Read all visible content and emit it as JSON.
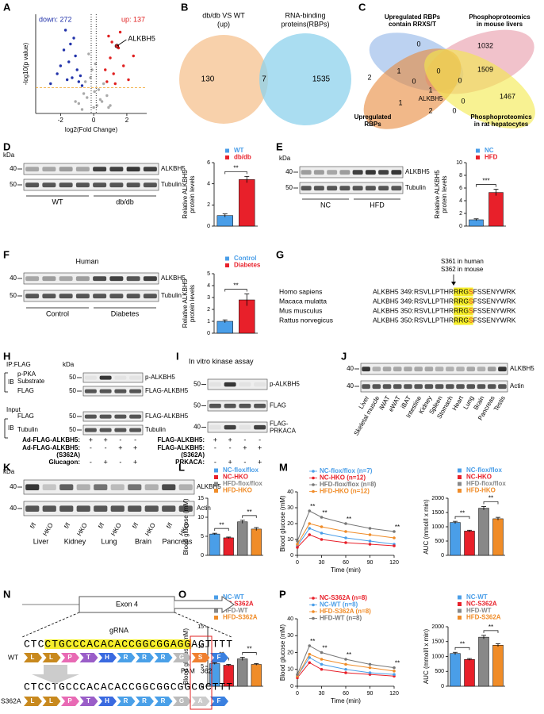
{
  "A": {
    "label": "A",
    "down": "down: 272",
    "up": "up: 137",
    "gene": "ALKBH5",
    "gene_point": {
      "x": 1.4,
      "y": 3.4
    },
    "ylabel": "-log10(p value)",
    "xlabel": "log2(Fold Change)",
    "xlim": [
      -3.5,
      3.2
    ],
    "ylim": [
      0,
      5
    ],
    "xticks": [
      -2,
      0,
      2
    ],
    "threshold": 1.3,
    "vlines": [
      -0.15,
      0.15
    ],
    "series": [
      {
        "color": "#aaaaaa",
        "x": [
          -0.9,
          -0.6,
          -0.4,
          -0.2,
          0,
          0.1,
          0.3,
          0.5,
          0.8,
          -0.3,
          0.2,
          -0.7,
          0.6,
          -0.1,
          0.4,
          -0.5,
          0.9,
          -1.1,
          1.0,
          0.05
        ],
        "y": [
          0.5,
          1.0,
          0.8,
          1.8,
          0.3,
          2.5,
          1.2,
          0.6,
          0.9,
          3.0,
          0.4,
          0.2,
          1.5,
          2.2,
          0.7,
          1.6,
          0.3,
          0.6,
          0.4,
          1.1
        ]
      },
      {
        "color": "#2233aa",
        "x": [
          -2.2,
          -1.8,
          -1.5,
          -1.3,
          -1.2,
          -1.0,
          -0.9,
          -2.6,
          -1.7,
          -1.1,
          -0.8,
          -1.4,
          -2.0,
          -0.7,
          -1.6
        ],
        "y": [
          2.0,
          3.2,
          2.6,
          1.8,
          3.8,
          2.2,
          1.6,
          1.5,
          4.2,
          2.9,
          1.9,
          3.5,
          2.4,
          1.4,
          1.7
        ]
      },
      {
        "color": "#e02020",
        "x": [
          0.8,
          1.0,
          1.2,
          1.5,
          1.8,
          2.1,
          0.9,
          1.3,
          1.6,
          0.7,
          2.4,
          1.1
        ],
        "y": [
          1.6,
          2.8,
          2.0,
          3.3,
          2.4,
          1.7,
          3.9,
          1.5,
          4.1,
          2.2,
          2.9,
          3.6
        ]
      }
    ]
  },
  "B": {
    "label": "B",
    "sets": [
      [
        "db/db VS WT",
        "(up)"
      ],
      [
        "RNA-binding",
        "proteins(RBPs)"
      ]
    ],
    "colors": [
      "#f6c696",
      "#8ed1ec"
    ],
    "counts": [
      130,
      7,
      1535
    ]
  },
  "C": {
    "label": "C",
    "sets": [
      [
        "Upregulated RBPs",
        "contain RRXS/T"
      ],
      [
        "Phosphoproteomics",
        "in mouse livers"
      ],
      [
        "Upregulated",
        "RBPs"
      ],
      [
        "Phosphoproteomics",
        "in rat hepatocytes"
      ]
    ],
    "colors": [
      "#8fb4e8",
      "#e89aa8",
      "#e8883a",
      "#f3e94a"
    ],
    "counts": [
      0,
      1032,
      2,
      1,
      0,
      1509,
      0,
      0,
      1,
      1467,
      1,
      0,
      2,
      0
    ],
    "gene": "ALKBH5"
  },
  "D": {
    "label": "D",
    "blot": {
      "kda": "kDa",
      "markers": [
        40,
        50
      ],
      "bands": [
        "ALKBH5",
        "Tubulin"
      ],
      "groups": [
        "WT",
        "db/db"
      ]
    },
    "bars": {
      "names": [
        "WT",
        "db/db"
      ],
      "colors": [
        "#4a9ee8",
        "#e8202a"
      ],
      "values": [
        1.0,
        4.4
      ],
      "errors": [
        0.15,
        0.3
      ],
      "ylabel": [
        "Relative ALKBH5",
        "protein levels"
      ],
      "ylim": [
        0,
        6
      ],
      "yticks": [
        0,
        2,
        4,
        6
      ],
      "sig": [
        "**"
      ]
    }
  },
  "E": {
    "label": "E",
    "blot": {
      "kda": "kDa",
      "markers": [
        40,
        50
      ],
      "bands": [
        "ALKBH5",
        "Tubulin"
      ],
      "groups": [
        "NC",
        "HFD"
      ]
    },
    "bars": {
      "names": [
        "NC",
        "HFD"
      ],
      "colors": [
        "#4a9ee8",
        "#e8202a"
      ],
      "values": [
        1.0,
        5.3
      ],
      "errors": [
        0.15,
        0.5
      ],
      "ylabel": [
        "Relative ALKBH5",
        "protein levels"
      ],
      "ylim": [
        0,
        10
      ],
      "yticks": [
        0,
        2,
        4,
        6,
        8,
        10
      ],
      "sig": [
        "***"
      ]
    }
  },
  "F": {
    "label": "F",
    "title": "Human",
    "blot": {
      "markers": [
        40,
        50
      ],
      "bands": [
        "ALKBH5",
        "Tubulin"
      ],
      "groups": [
        "Control",
        "Diabetes"
      ]
    },
    "bars": {
      "names": [
        "Control",
        "Diabetes"
      ],
      "colors": [
        "#4a9ee8",
        "#e8202a"
      ],
      "values": [
        1.0,
        2.8
      ],
      "errors": [
        0.12,
        0.5
      ],
      "ylabel": [
        "Relative ALKBH5",
        "protein levels"
      ],
      "ylim": [
        0,
        5
      ],
      "yticks": [
        0,
        1,
        2,
        3,
        4,
        5
      ],
      "sig": [
        "**"
      ]
    }
  },
  "G": {
    "label": "G",
    "notes": [
      "S361 in human",
      "S362 in mouse"
    ],
    "rows": [
      {
        "species": "Homo sapiens",
        "id": "ALKBH5 349:",
        "seq": [
          "RSVLLPTHR",
          "RRG",
          "S",
          "FSSENYWRK"
        ]
      },
      {
        "species": "Macaca mulatta",
        "id": "ALKBH5 349:",
        "seq": [
          "RSVLLPTHR",
          "RRG",
          "S",
          "FSSENYWRK"
        ]
      },
      {
        "species": "Mus musculus",
        "id": "ALKBH5 350:",
        "seq": [
          "RSVLLPTHR",
          "RRG",
          "S",
          "FSSENYWRK"
        ]
      },
      {
        "species": "Rattus norvegicus",
        "id": "ALKBH5 350:",
        "seq": [
          "RSVLLPTHR",
          "RRG",
          "S",
          "FSSENYWRK"
        ]
      }
    ]
  },
  "H": {
    "label": "H",
    "ip": "IP:FLAG",
    "ib": [
      "IB",
      "IB"
    ],
    "input": "Input",
    "blot": {
      "kda": "kDa",
      "markers": [
        50,
        50,
        50,
        50
      ],
      "bands": [
        "p-ALKBH5",
        "FLAG-ALKBH5",
        "FLAG-ALKBH5",
        "Tubulin"
      ],
      "antibodies": [
        [
          "p-PKA",
          "Substrate"
        ],
        [
          "FLAG"
        ],
        [
          "FLAG"
        ],
        [
          "Tubulin"
        ]
      ]
    },
    "conditions": [
      {
        "name": "Ad-FLAG-ALKBH5:",
        "signs": [
          "+",
          "+",
          "-",
          "-"
        ]
      },
      {
        "name": "Ad-FLAG-ALKBH5:",
        "sub": "(S362A)",
        "signs": [
          "-",
          "-",
          "+",
          "+"
        ]
      },
      {
        "name": "Glucagon:",
        "signs": [
          "-",
          "+",
          "-",
          "+"
        ]
      }
    ]
  },
  "I": {
    "label": "I",
    "title": "In vitro kinase assay",
    "blot": {
      "markers": [
        50,
        50,
        40
      ],
      "bands": [
        "p-ALKBH5",
        "FLAG",
        [
          "FLAG-",
          "PRKACA"
        ]
      ]
    },
    "conditions": [
      {
        "name": "FLAG-ALKBH5:",
        "signs": [
          "+",
          "+",
          "-",
          "-"
        ]
      },
      {
        "name": "FLAG-ALKBH5:",
        "sub": "(S362A)",
        "signs": [
          "-",
          "-",
          "+",
          "+"
        ]
      },
      {
        "name": "PRKACA:",
        "signs": [
          "-",
          "+",
          "-",
          "+"
        ]
      }
    ]
  },
  "J": {
    "label": "J",
    "blot": {
      "markers": [
        40,
        40
      ],
      "bands": [
        "ALKBH5",
        "Actin"
      ]
    },
    "tissues": [
      "Liver",
      "Skeletal muscle",
      "iWAT",
      "eWAT",
      "iBAT",
      "Intestine",
      "Kidney",
      "Spleen",
      "Stomach",
      "Heart",
      "Lung",
      "Brain",
      "Pancreas",
      "Testis"
    ]
  },
  "K": {
    "label": "K",
    "blot": {
      "kda": "kDa",
      "markers": [
        40,
        40
      ],
      "bands": [
        "ALKBH5",
        "Actin"
      ]
    },
    "lanes": [
      "f/f",
      "HKO",
      "f/f",
      "HKO",
      "f/f",
      "HKO",
      "f/f",
      "HKO",
      "f/f",
      "HKO"
    ],
    "tissues": [
      "Liver",
      "Kidney",
      "Lung",
      "Brain",
      "Pancreas"
    ]
  },
  "L": {
    "label": "L",
    "bars": {
      "names": [
        "NC-flox/flox",
        "NC-HKO",
        "HFD-flox/flox",
        "HFD-HKO"
      ],
      "colors": [
        "#4a9ee8",
        "#e8202a",
        "#888888",
        "#f08c28"
      ],
      "values": [
        5.6,
        4.6,
        8.8,
        6.9
      ],
      "errors": [
        0.2,
        0.2,
        0.4,
        0.4
      ],
      "ylabel": "Blood glucose (mM)",
      "ylim": [
        0,
        15
      ],
      "yticks": [
        0,
        5,
        10,
        15
      ],
      "sig": [
        "**",
        "**"
      ]
    }
  },
  "M": {
    "label": "M",
    "line": {
      "x": [
        0,
        15,
        30,
        60,
        90,
        120
      ],
      "xlim": [
        0,
        120
      ],
      "xticks": [
        0,
        30,
        60,
        90,
        120
      ],
      "ylim": [
        0,
        40
      ],
      "yticks": [
        0,
        10,
        20,
        30,
        40
      ],
      "xlabel": "Time (min)",
      "ylabel": "Blood glucose (mM)",
      "series": [
        {
          "name": "NC-flox/flox (n=7)",
          "color": "#4a9ee8",
          "values": [
            6,
            17,
            14,
            11,
            9,
            7
          ]
        },
        {
          "name": "NC-HKO (n=12)",
          "color": "#e8202a",
          "values": [
            5,
            13,
            10,
            8,
            7,
            6
          ]
        },
        {
          "name": "HFD-flox/flox (n=8)",
          "color": "#777777",
          "values": [
            9,
            28,
            24,
            20,
            17,
            15
          ]
        },
        {
          "name": "HFD-HKO (n=12)",
          "color": "#f08c28",
          "values": [
            7,
            20,
            18,
            15,
            13,
            11
          ]
        }
      ],
      "sig": [
        null,
        "**",
        "**",
        "**",
        null,
        "**"
      ]
    },
    "auc": {
      "names": [
        "NC-flox/flox",
        "NC-HKO",
        "HFD-flox/flox",
        "HFD-HKO"
      ],
      "colors": [
        "#4a9ee8",
        "#e8202a",
        "#888888",
        "#f08c28"
      ],
      "values": [
        1150,
        850,
        1650,
        1280
      ],
      "errors": [
        40,
        30,
        60,
        50
      ],
      "ylabel": "AUC (mmol/l x min)",
      "ylim": [
        0,
        2000
      ],
      "yticks": [
        0,
        500,
        1000,
        1500,
        2000
      ],
      "sig": [
        "**",
        "**"
      ]
    }
  },
  "N": {
    "label": "N",
    "exon": "Exon 4",
    "grna": "gRNA",
    "pam": "PAM",
    "site": "362",
    "wt": {
      "name": "WT",
      "seq": "CTCCTGCCCACACACCGGCGGAGGAGTTTT",
      "aa": [
        "L",
        "L",
        "P",
        "T",
        "H",
        "R",
        "R",
        "R",
        "G",
        "S",
        "F"
      ]
    },
    "mut": {
      "name": "S362A",
      "seq": "CTCCTGCCCACACACCGGCGGCGGCGCTTT",
      "aa": [
        "L",
        "L",
        "P",
        "T",
        "H",
        "R",
        "R",
        "R",
        "G",
        "A",
        "F"
      ]
    }
  },
  "O": {
    "label": "O",
    "bars": {
      "names": [
        "NC-WT",
        "NC-S362A",
        "HFD-WT",
        "HFD-S362A"
      ],
      "colors": [
        "#4a9ee8",
        "#e8202a",
        "#888888",
        "#f08c28"
      ],
      "values": [
        5.7,
        5.3,
        6.9,
        5.5
      ],
      "errors": [
        0.2,
        0.2,
        0.4,
        0.2
      ],
      "ylabel": "Blood glucose (mM)",
      "ylim": [
        0,
        15
      ],
      "yticks": [
        0,
        5,
        10,
        15
      ],
      "sig": [
        "**",
        "**"
      ]
    }
  },
  "P": {
    "label": "P",
    "line": {
      "x": [
        0,
        15,
        30,
        60,
        90,
        120
      ],
      "xlim": [
        0,
        120
      ],
      "xticks": [
        0,
        30,
        60,
        90,
        120
      ],
      "ylim": [
        0,
        40
      ],
      "yticks": [
        0,
        10,
        20,
        30,
        40
      ],
      "xlabel": "Time (min)",
      "ylabel": "Blood glucose (mM)",
      "series": [
        {
          "name": "NC-S362A (n=8)",
          "color": "#e8202a",
          "values": [
            5,
            14,
            10,
            8,
            7,
            6
          ]
        },
        {
          "name": "NC-WT (n=8)",
          "color": "#4a9ee8",
          "values": [
            6,
            17,
            13,
            10,
            8,
            7
          ]
        },
        {
          "name": "HFD-S362A (n=8)",
          "color": "#f08c28",
          "values": [
            6,
            19,
            16,
            13,
            11,
            9
          ]
        },
        {
          "name": "HFD-WT (n=8)",
          "color": "#777777",
          "values": [
            7,
            24,
            20,
            16,
            13,
            11
          ]
        }
      ],
      "sig": [
        null,
        "**",
        "**",
        "**",
        null,
        "**"
      ]
    },
    "auc": {
      "names": [
        "NC-WT",
        "NC-S362A",
        "HFD-WT",
        "HFD-S362A"
      ],
      "colors": [
        "#4a9ee8",
        "#e8202a",
        "#888888",
        "#f08c28"
      ],
      "values": [
        1100,
        900,
        1650,
        1380
      ],
      "errors": [
        40,
        30,
        60,
        50
      ],
      "ylabel": "AUC (mmol/l x min)",
      "ylim": [
        0,
        2000
      ],
      "yticks": [
        0,
        500,
        1000,
        1500,
        2000
      ],
      "sig": [
        "**",
        "**"
      ]
    }
  }
}
